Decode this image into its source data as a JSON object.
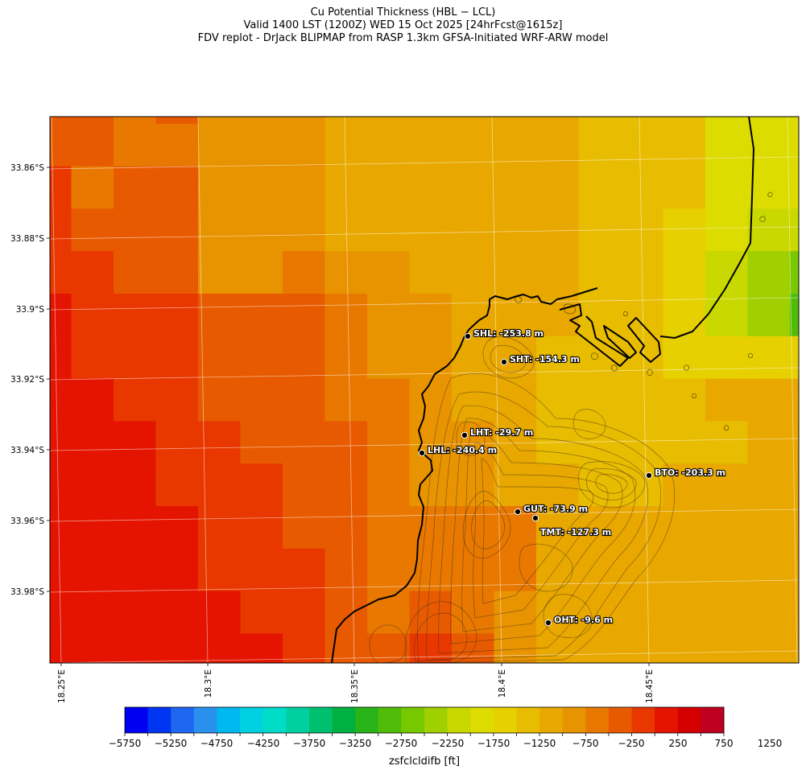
{
  "header": {
    "line1": "Cu Potential Thickness (HBL − LCL)",
    "line2": "Valid 1400 LST (1200Z) WED 15 Oct 2025 [24hrFcst@1615z]",
    "line3": "FDV replot - DrJack BLIPMAP from RASP 1.3km GFSA-Initiated WRF-ARW model"
  },
  "axes": {
    "lat_ticks": [
      "33.86°S",
      "33.88°S",
      "33.9°S",
      "33.92°S",
      "33.94°S",
      "33.96°S",
      "33.98°S"
    ],
    "lon_ticks": [
      "18.25°E",
      "18.3°E",
      "18.35°E",
      "18.4°E",
      "18.45°E"
    ]
  },
  "colorbar": {
    "label": "zsfclcldifb [ft]",
    "ticks": [
      "−5750",
      "−5250",
      "−4750",
      "−4250",
      "−3750",
      "−3250",
      "−2750",
      "−2250",
      "−1750",
      "−1250",
      "−750",
      "−250",
      "250",
      "750",
      "1250"
    ],
    "colors": [
      "#0000f2",
      "#0036f2",
      "#1f66f0",
      "#2a90ee",
      "#00b8f0",
      "#00d0e0",
      "#00dcc8",
      "#00d0a0",
      "#00c070",
      "#00b040",
      "#28b418",
      "#50bc08",
      "#78c800",
      "#a0d000",
      "#c8d800",
      "#dcdc00",
      "#e6d000",
      "#e8bc00",
      "#e8a800",
      "#e89400",
      "#e87800",
      "#e85a00",
      "#e83800",
      "#e41400",
      "#d40000",
      "#c00020"
    ]
  },
  "stations": [
    {
      "code": "SHL",
      "label": "SHL: -253.8 m",
      "value": -253.8
    },
    {
      "code": "SHT",
      "label": "SHT: -154.3 m",
      "value": -154.3
    },
    {
      "code": "LHT",
      "label": "LHT: -29.7 m",
      "value": -29.7
    },
    {
      "code": "LHL",
      "label": "LHL: -240.4 m",
      "value": -240.4
    },
    {
      "code": "BTO",
      "label": "BTO: -203.3 m",
      "value": -203.3
    },
    {
      "code": "GUT",
      "label": "GUT: -73.9 m",
      "value": -73.9
    },
    {
      "code": "TMT",
      "label": "TMT: -127.3 m",
      "value": -127.3
    },
    {
      "code": "OHT",
      "label": "OHT: -9.6 m",
      "value": -9.6
    }
  ],
  "grid_palette": {
    "A": "#d40000",
    "B": "#e41400",
    "C": "#e83800",
    "D": "#e85a00",
    "E": "#e87800",
    "F": "#e89400",
    "G": "#e8a800",
    "H": "#e8bc00",
    "I": "#e6d000",
    "J": "#dcdc00",
    "K": "#c8d800",
    "L": "#a0d000",
    "M": "#78c800",
    "N": "#50bc08",
    "O": "#28b418"
  },
  "grid_rows": [
    "DDEDFFFGGGGGGHHHJJJLLLLM",
    "DDEEFFFGGGGGGHHHJJJLLLAB",
    "CEDDFFFGGGGGGHHHJJJMMOAB",
    "CDDDFFFGGGGGGHHIJKKMOOCC",
    "CCDDFFEFFGGGGHHIKLMIIDD",
    "BCCCDDDEFFGGGHHIKLNIGGG",
    "BCCCDDDEFFGGHHHIIIIFFFG",
    "BBCCDDDEEFGGHHHHGGGFFFG",
    "BBBCCDDDEFFGHHHHHGGGFFE",
    "BBBCCCDDEFFGGHHGGGGFFFF",
    "BBBBCCDDEEEEGGGGGGGEEFF",
    "BBBBCCCDEEEEGGGGGGGGFFF",
    "BBBBBCCDEDEFGGGGGGGGGGH",
    "BBBBBBCDDCDFGGGGGGGGGGH",
    "BBBBBBCCCCDEFFGGGGGFFGH",
    "BBBBBBCCCCDDEFFFGGGFFFG",
    "BBBBBBBCCCCDEFFFGFFFFFF"
  ]
}
